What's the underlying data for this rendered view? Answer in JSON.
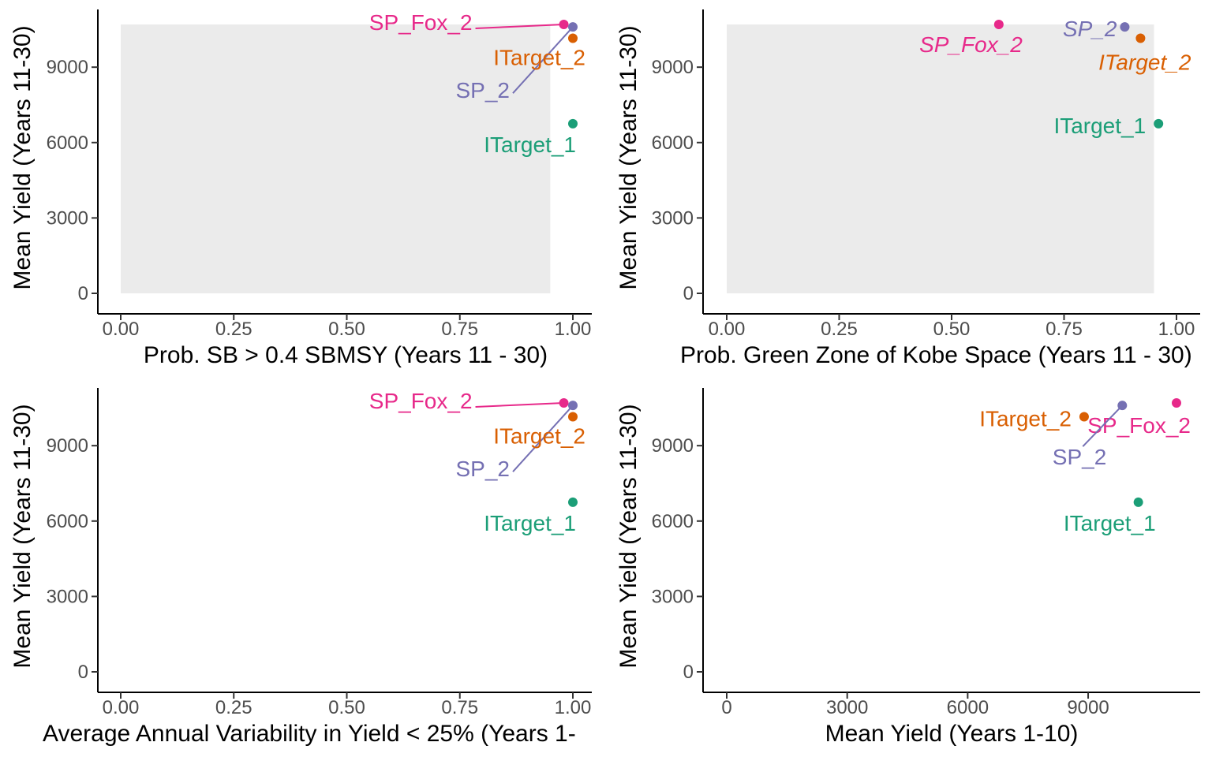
{
  "chart_data": [
    {
      "type": "scatter",
      "xlabel": "Prob. SB > 0.4 SBMSY (Years 11 - 30)",
      "ylabel": "Mean Yield (Years 11-30)",
      "xlim": [
        0,
        1
      ],
      "ylim": [
        0,
        10700
      ],
      "xticks": [
        0,
        0.25,
        0.5,
        0.75,
        1
      ],
      "xtick_labels": [
        "0.00",
        "0.25",
        "0.50",
        "0.75",
        "1.00"
      ],
      "yticks": [
        0,
        3000,
        6000,
        9000
      ],
      "ytick_labels": [
        "0",
        "3000",
        "6000",
        "9000"
      ],
      "shaded_region": {
        "x": [
          0,
          0.95
        ],
        "y": [
          0,
          10700
        ],
        "color": "#ebebeb"
      },
      "points": [
        {
          "label": "SP_Fox_2",
          "x": 0.98,
          "y": 10700,
          "color": "#e7298a",
          "italic": false
        },
        {
          "label": "SP_2",
          "x": 1.0,
          "y": 10600,
          "color": "#7570b3",
          "italic": false
        },
        {
          "label": "ITarget_2",
          "x": 1.0,
          "y": 10150,
          "color": "#d95f02",
          "italic": false
        },
        {
          "label": "ITarget_1",
          "x": 1.0,
          "y": 6750,
          "color": "#1b9e77",
          "italic": false
        }
      ]
    },
    {
      "type": "scatter",
      "xlabel": "Prob. Green Zone of Kobe Space (Years 11 - 30)",
      "ylabel": "Mean Yield (Years 11-30)",
      "xlim": [
        0,
        1
      ],
      "ylim": [
        0,
        10700
      ],
      "xticks": [
        0,
        0.25,
        0.5,
        0.75,
        1
      ],
      "xtick_labels": [
        "0.00",
        "0.25",
        "0.50",
        "0.75",
        "1.00"
      ],
      "yticks": [
        0,
        3000,
        6000,
        9000
      ],
      "ytick_labels": [
        "0",
        "3000",
        "6000",
        "9000"
      ],
      "shaded_region": {
        "x": [
          0,
          0.95
        ],
        "y": [
          0,
          10700
        ],
        "color": "#ebebeb"
      },
      "points": [
        {
          "label": "SP_Fox_2",
          "x": 0.605,
          "y": 10700,
          "color": "#e7298a",
          "italic": true
        },
        {
          "label": "SP_2",
          "x": 0.885,
          "y": 10600,
          "color": "#7570b3",
          "italic": true
        },
        {
          "label": "ITarget_2",
          "x": 0.92,
          "y": 10150,
          "color": "#d95f02",
          "italic": true
        },
        {
          "label": "ITarget_1",
          "x": 0.96,
          "y": 6750,
          "color": "#1b9e77",
          "italic": false
        }
      ]
    },
    {
      "type": "scatter",
      "xlabel": "Average Annual Variability in Yield < 25% (Years 1-",
      "ylabel": "Mean Yield (Years 11-30)",
      "xlim": [
        0,
        1
      ],
      "ylim": [
        0,
        10700
      ],
      "xticks": [
        0,
        0.25,
        0.5,
        0.75,
        1
      ],
      "xtick_labels": [
        "0.00",
        "0.25",
        "0.50",
        "0.75",
        "1.00"
      ],
      "yticks": [
        0,
        3000,
        6000,
        9000
      ],
      "ytick_labels": [
        "0",
        "3000",
        "6000",
        "9000"
      ],
      "points": [
        {
          "label": "SP_Fox_2",
          "x": 0.98,
          "y": 10700,
          "color": "#e7298a",
          "italic": false
        },
        {
          "label": "SP_2",
          "x": 1.0,
          "y": 10600,
          "color": "#7570b3",
          "italic": false
        },
        {
          "label": "ITarget_2",
          "x": 1.0,
          "y": 10150,
          "color": "#d95f02",
          "italic": false
        },
        {
          "label": "ITarget_1",
          "x": 1.0,
          "y": 6750,
          "color": "#1b9e77",
          "italic": false
        }
      ]
    },
    {
      "type": "scatter",
      "xlabel": "Mean Yield (Years 1-10)",
      "ylabel": "Mean Yield (Years 11-30)",
      "xlim": [
        0,
        11200
      ],
      "ylim": [
        0,
        10700
      ],
      "xticks": [
        0,
        3000,
        6000,
        9000
      ],
      "xtick_labels": [
        "0",
        "3000",
        "6000",
        "9000"
      ],
      "yticks": [
        0,
        3000,
        6000,
        9000
      ],
      "ytick_labels": [
        "0",
        "3000",
        "6000",
        "9000"
      ],
      "points": [
        {
          "label": "SP_Fox_2",
          "x": 11200,
          "y": 10700,
          "color": "#e7298a",
          "italic": false
        },
        {
          "label": "SP_2",
          "x": 9850,
          "y": 10600,
          "color": "#7570b3",
          "italic": false
        },
        {
          "label": "ITarget_2",
          "x": 8900,
          "y": 10150,
          "color": "#d95f02",
          "italic": false
        },
        {
          "label": "ITarget_1",
          "x": 10250,
          "y": 6750,
          "color": "#1b9e77",
          "italic": false
        }
      ]
    }
  ]
}
